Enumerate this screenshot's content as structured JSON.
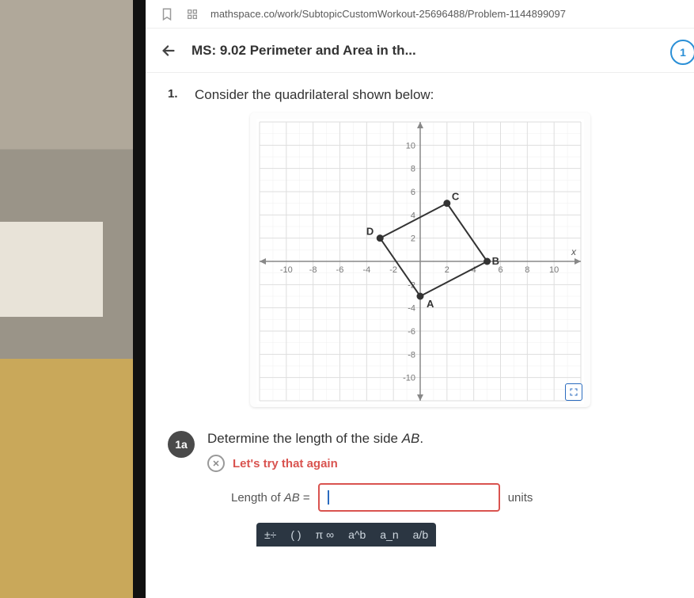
{
  "url": "mathspace.co/work/SubtopicCustomWorkout-25696488/Problem-1144899097",
  "header": {
    "title": "MS: 9.02 Perimeter and Area in th..."
  },
  "badge": {
    "number": "1"
  },
  "question": {
    "number": "1.",
    "text": "Consider the quadrilateral shown below:"
  },
  "graph": {
    "type": "scatter-with-polygon",
    "xlim": [
      -12,
      12
    ],
    "ylim": [
      -12,
      12
    ],
    "xticks": [
      -10,
      -8,
      -6,
      -4,
      -2,
      2,
      4,
      6,
      8,
      10
    ],
    "yticks": [
      -10,
      -8,
      -6,
      -4,
      -2,
      2,
      4,
      6,
      8,
      10
    ],
    "xtick_labels_shown": {
      "-10": "-10",
      "-8": "-8",
      "-6": "-6",
      "-4": "-4",
      "-2": "-2",
      "2": "2",
      "6": "6",
      "8": "8",
      "10": "10"
    },
    "axis_label_x": "x",
    "grid_color": "#dedede",
    "minor_grid_color": "#efefef",
    "axis_color": "#888888",
    "background_color": "#ffffff",
    "point_color": "#333333",
    "edge_color": "#333333",
    "label_fontsize": 11,
    "points": {
      "A": {
        "x": 0,
        "y": -3,
        "label": "A"
      },
      "B": {
        "x": 5,
        "y": 0,
        "label": "B"
      },
      "C": {
        "x": 2,
        "y": 5,
        "label": "C"
      },
      "D": {
        "x": -3,
        "y": 2,
        "label": "D"
      }
    },
    "polygon_order": [
      "A",
      "B",
      "C",
      "D"
    ]
  },
  "part": {
    "id": "1a",
    "prompt_prefix": "Determine the length of the side ",
    "side": "AB",
    "prompt_suffix": ".",
    "feedback": "Let's try that again",
    "answer_label_prefix": "Length of ",
    "answer_label_side": "AB",
    "answer_label_suffix": " = ",
    "input_value": "",
    "units": "units"
  },
  "toolbar": {
    "items": [
      "±÷",
      "( )",
      "π ∞",
      "a^b",
      "a_n",
      "a/b"
    ]
  }
}
